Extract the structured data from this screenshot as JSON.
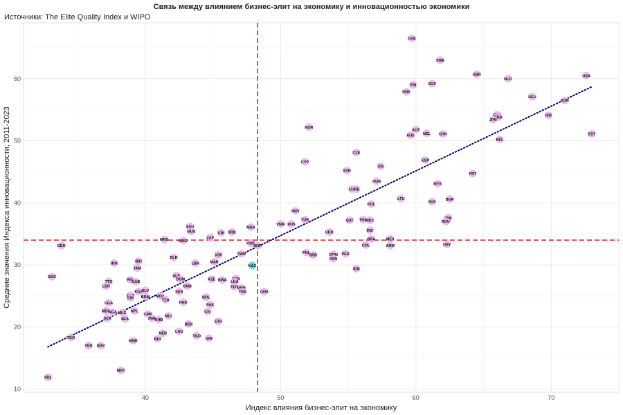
{
  "chart_data": {
    "type": "scatter",
    "title": "Связь между влиянием бизнес-элит на экономику и инновационностью экономики",
    "subtitle": "Источники: The Elite Quality Index и WIPO",
    "xlabel": "Индекс влияния бизнес-элит на экономику",
    "ylabel": "Средние значения Индекса инновационности, 2011-2023",
    "xlim": [
      31,
      75
    ],
    "ylim": [
      9.5,
      69
    ],
    "x_ticks": [
      40,
      50,
      60,
      70
    ],
    "y_ticks": [
      10,
      20,
      30,
      40,
      50,
      60
    ],
    "grid": true,
    "vline": 48.3,
    "hline": 34,
    "trend_line": {
      "x": [
        32.8,
        73
      ],
      "y": [
        16.8,
        58.7
      ]
    },
    "colors": {
      "point": "#e9b3ec",
      "highlight": "#4fd6d6",
      "trend": "#000066",
      "ref": "#e41a1c",
      "grid": "#ebebeb"
    },
    "points": [
      {
        "label": "CHE",
        "x": 59.7,
        "y": 66.5
      },
      {
        "label": "SWE",
        "x": 61.8,
        "y": 63.0
      },
      {
        "label": "GBR",
        "x": 64.5,
        "y": 60.7
      },
      {
        "label": "NLD",
        "x": 66.8,
        "y": 60.0
      },
      {
        "label": "USA",
        "x": 72.6,
        "y": 60.5
      },
      {
        "label": "FIN",
        "x": 59.8,
        "y": 59.0
      },
      {
        "label": "SGP",
        "x": 61.2,
        "y": 59.2
      },
      {
        "label": "DNK",
        "x": 59.3,
        "y": 57.9
      },
      {
        "label": "DEU",
        "x": 68.6,
        "y": 57.1
      },
      {
        "label": "KOR",
        "x": 71.0,
        "y": 56.5
      },
      {
        "label": "CAN",
        "x": 66.0,
        "y": 54.2
      },
      {
        "label": "FRA",
        "x": 66.1,
        "y": 53.8
      },
      {
        "label": "JPN",
        "x": 65.7,
        "y": 53.4
      },
      {
        "label": "ISR",
        "x": 69.8,
        "y": 54.1
      },
      {
        "label": "NOR",
        "x": 52.1,
        "y": 52.2
      },
      {
        "label": "AUT",
        "x": 60.0,
        "y": 51.8
      },
      {
        "label": "AUS",
        "x": 59.6,
        "y": 50.9
      },
      {
        "label": "NZL",
        "x": 60.8,
        "y": 51.2
      },
      {
        "label": "CHN",
        "x": 62.0,
        "y": 51.1
      },
      {
        "label": "EST",
        "x": 73.0,
        "y": 51.1
      },
      {
        "label": "BEL",
        "x": 66.2,
        "y": 50.2
      },
      {
        "label": "CZE",
        "x": 55.6,
        "y": 48.1
      },
      {
        "label": "CYP",
        "x": 51.8,
        "y": 46.6
      },
      {
        "label": "ESP",
        "x": 60.7,
        "y": 46.9
      },
      {
        "label": "ITA",
        "x": 57.4,
        "y": 45.9
      },
      {
        "label": "SVN",
        "x": 54.9,
        "y": 45.2
      },
      {
        "label": "PRT",
        "x": 64.2,
        "y": 44.7
      },
      {
        "label": "HUN",
        "x": 57.1,
        "y": 43.5
      },
      {
        "label": "MYS",
        "x": 61.6,
        "y": 43.1
      },
      {
        "label": "LVA",
        "x": 55.3,
        "y": 42.2
      },
      {
        "label": "IRE",
        "x": 55.6,
        "y": 42.2
      },
      {
        "label": "LTU",
        "x": 58.9,
        "y": 40.7
      },
      {
        "label": "BGR",
        "x": 62.5,
        "y": 40.6
      },
      {
        "label": "SVK",
        "x": 61.2,
        "y": 40.2
      },
      {
        "label": "POL",
        "x": 56.7,
        "y": 39.8
      },
      {
        "label": "HRV",
        "x": 51.1,
        "y": 38.7
      },
      {
        "label": "CHL",
        "x": 62.4,
        "y": 37.6
      },
      {
        "label": "ROU",
        "x": 62.2,
        "y": 37.0
      },
      {
        "label": "TUR",
        "x": 51.8,
        "y": 37.3
      },
      {
        "label": "QAT",
        "x": 55.1,
        "y": 37.2
      },
      {
        "label": "THA",
        "x": 56.1,
        "y": 37.3
      },
      {
        "label": "MKC",
        "x": 56.6,
        "y": 37.2
      },
      {
        "label": "VNM",
        "x": 50.0,
        "y": 36.6
      },
      {
        "label": "RUS",
        "x": 50.8,
        "y": 36.6
      },
      {
        "label": "MDA",
        "x": 47.8,
        "y": 36.1
      },
      {
        "label": "IND",
        "x": 56.6,
        "y": 35.6
      },
      {
        "label": "UKR",
        "x": 53.6,
        "y": 35.3
      },
      {
        "label": "SAU",
        "x": 43.3,
        "y": 36.2
      },
      {
        "label": "MUS",
        "x": 43.4,
        "y": 35.4
      },
      {
        "label": "CRI",
        "x": 45.6,
        "y": 35.2
      },
      {
        "label": "SRB",
        "x": 46.4,
        "y": 35.3
      },
      {
        "label": "ZAF",
        "x": 44.8,
        "y": 34.4
      },
      {
        "label": "MKD",
        "x": 41.4,
        "y": 34.1
      },
      {
        "label": "MNG",
        "x": 42.8,
        "y": 33.9
      },
      {
        "label": "BRA",
        "x": 56.7,
        "y": 34.2
      },
      {
        "label": "MEX",
        "x": 58.1,
        "y": 34.2
      },
      {
        "label": "ARM",
        "x": 58.1,
        "y": 33.1
      },
      {
        "label": "COL",
        "x": 56.3,
        "y": 33.2
      },
      {
        "label": "URY",
        "x": 62.3,
        "y": 33.3
      },
      {
        "label": "KWT",
        "x": 47.8,
        "y": 33.5
      },
      {
        "label": "BHR",
        "x": 48.3,
        "y": 33.1
      },
      {
        "label": "GEO",
        "x": 33.8,
        "y": 33.1
      },
      {
        "label": "PHL",
        "x": 51.9,
        "y": 32.0
      },
      {
        "label": "SRB",
        "x": 52.4,
        "y": 31.6
      },
      {
        "label": "OMN",
        "x": 53.9,
        "y": 31.7
      },
      {
        "label": "PAN",
        "x": 53.9,
        "y": 31.0
      },
      {
        "label": "PER",
        "x": 54.8,
        "y": 31.8
      },
      {
        "label": "TWN",
        "x": 47.1,
        "y": 31.8
      },
      {
        "label": "BLR",
        "x": 42.1,
        "y": 31.2
      },
      {
        "label": "JOR",
        "x": 45.4,
        "y": 31.6
      },
      {
        "label": "BIH",
        "x": 39.5,
        "y": 30.6
      },
      {
        "label": "IRN",
        "x": 37.7,
        "y": 30.3
      },
      {
        "label": "MAR",
        "x": 45.1,
        "y": 30.5
      },
      {
        "label": "LBN",
        "x": 43.7,
        "y": 30.3
      },
      {
        "label": "KAZ",
        "x": 47.9,
        "y": 29.9
      },
      {
        "label": "IDN",
        "x": 55.6,
        "y": 29.4
      },
      {
        "label": "JAM",
        "x": 39.4,
        "y": 29.5
      },
      {
        "label": "ALB",
        "x": 42.3,
        "y": 28.3
      },
      {
        "label": "DOM",
        "x": 42.6,
        "y": 27.7
      },
      {
        "label": "SWZ",
        "x": 33.1,
        "y": 28.1
      },
      {
        "label": "AZE",
        "x": 44.9,
        "y": 27.7
      },
      {
        "label": "BWA",
        "x": 45.7,
        "y": 27.6
      },
      {
        "label": "KEN",
        "x": 46.7,
        "y": 27.8
      },
      {
        "label": "LKA",
        "x": 46.6,
        "y": 27.3
      },
      {
        "label": "EGY",
        "x": 46.6,
        "y": 26.5
      },
      {
        "label": "VNM",
        "x": 47.1,
        "y": 26.3
      },
      {
        "label": "GMB",
        "x": 43.1,
        "y": 26.6
      },
      {
        "label": "TTO",
        "x": 37.3,
        "y": 27.3
      },
      {
        "label": "PRY",
        "x": 38.9,
        "y": 27.6
      },
      {
        "label": "GAB",
        "x": 39.3,
        "y": 27.3
      },
      {
        "label": "LSO",
        "x": 37.1,
        "y": 26.6
      },
      {
        "label": "SLV",
        "x": 40.0,
        "y": 25.9
      },
      {
        "label": "KGZ",
        "x": 39.5,
        "y": 25.7
      },
      {
        "label": "SEN",
        "x": 42.5,
        "y": 25.7
      },
      {
        "label": "GHA",
        "x": 48.8,
        "y": 25.7
      },
      {
        "label": "TRA",
        "x": 47.2,
        "y": 25.7
      },
      {
        "label": "MWI",
        "x": 38.9,
        "y": 25.1
      },
      {
        "label": "TJK",
        "x": 38.9,
        "y": 24.7
      },
      {
        "label": "BRM",
        "x": 40.0,
        "y": 24.9
      },
      {
        "label": "MOZ",
        "x": 41.1,
        "y": 25.0
      },
      {
        "label": "TZA",
        "x": 41.5,
        "y": 24.4
      },
      {
        "label": "BOL",
        "x": 44.5,
        "y": 24.8
      },
      {
        "label": "HND",
        "x": 42.8,
        "y": 24.0
      },
      {
        "label": "UGA",
        "x": 37.3,
        "y": 23.9
      },
      {
        "label": "PAK",
        "x": 44.8,
        "y": 23.6
      },
      {
        "label": "MDG",
        "x": 37.1,
        "y": 22.6
      },
      {
        "label": "NGA",
        "x": 37.6,
        "y": 22.4
      },
      {
        "label": "MLG",
        "x": 38.3,
        "y": 22.3
      },
      {
        "label": "NPL",
        "x": 39.2,
        "y": 22.6
      },
      {
        "label": "CIV",
        "x": 44.6,
        "y": 22.5
      },
      {
        "label": "CMR",
        "x": 40.2,
        "y": 22.1
      },
      {
        "label": "MLI",
        "x": 41.7,
        "y": 21.8
      },
      {
        "label": "DZA",
        "x": 37.2,
        "y": 21.4
      },
      {
        "label": "BFA",
        "x": 38.5,
        "y": 21.3
      },
      {
        "label": "ZWE",
        "x": 40.5,
        "y": 21.4
      },
      {
        "label": "KHB",
        "x": 41.0,
        "y": 21.2
      },
      {
        "label": "ETH",
        "x": 45.4,
        "y": 20.9
      },
      {
        "label": "BEN",
        "x": 43.2,
        "y": 20.5
      },
      {
        "label": "LAO",
        "x": 42.5,
        "y": 19.3
      },
      {
        "label": "NER",
        "x": 41.3,
        "y": 19.0
      },
      {
        "label": "TGO",
        "x": 43.8,
        "y": 18.6
      },
      {
        "label": "GIN",
        "x": 44.7,
        "y": 18.2
      },
      {
        "label": "BDI",
        "x": 40.9,
        "y": 18.1
      },
      {
        "label": "MMR",
        "x": 39.1,
        "y": 17.8
      },
      {
        "label": "TGO",
        "x": 34.5,
        "y": 18.3
      },
      {
        "label": "YEN",
        "x": 35.8,
        "y": 17.0
      },
      {
        "label": "SDN",
        "x": 36.7,
        "y": 17.0
      },
      {
        "label": "MRT",
        "x": 38.2,
        "y": 13.0
      },
      {
        "label": "IRQ",
        "x": 32.8,
        "y": 11.9
      }
    ],
    "highlight_label": "KAZ"
  }
}
